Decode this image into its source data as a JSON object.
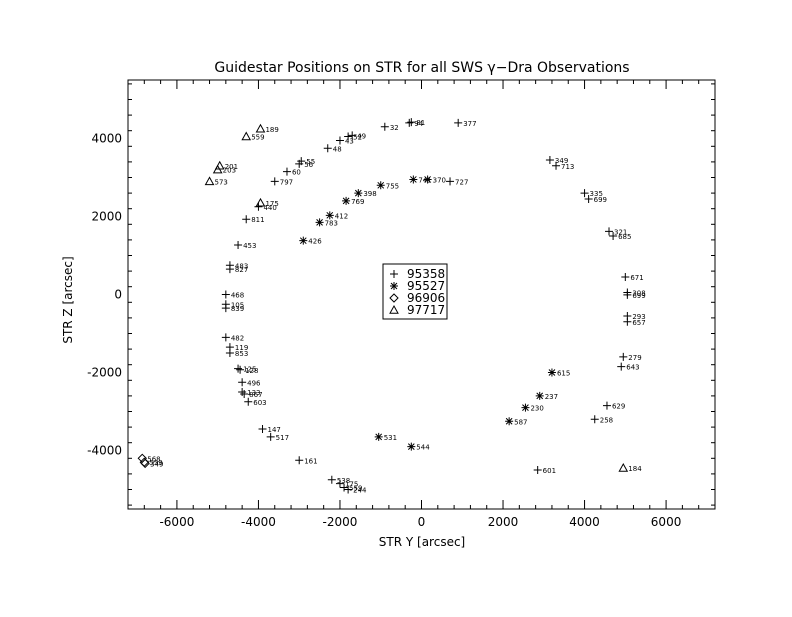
{
  "chart_data": {
    "type": "scatter",
    "title": "Guidestar Positions on STR for all SWS γ−Dra Observations",
    "xlabel": "STR Y [arcsec]",
    "ylabel": "STR Z [arcsec]",
    "xlim": [
      -7200,
      7200
    ],
    "ylim": [
      -5500,
      5500
    ],
    "xticks": [
      -6000,
      -4000,
      -2000,
      0,
      2000,
      4000,
      6000
    ],
    "yticks": [
      -4000,
      -2000,
      0,
      2000,
      4000
    ],
    "grid": false,
    "legend_position": "center",
    "colors": {
      "ink": "#000000",
      "background": "#ffffff"
    },
    "series": [
      {
        "name": "95358",
        "marker": "plus",
        "points": [
          {
            "x": -300,
            "y": 4400,
            "label": "94"
          },
          {
            "x": -250,
            "y": 4420,
            "label": "81"
          },
          {
            "x": 900,
            "y": 4400,
            "label": "377"
          },
          {
            "x": -900,
            "y": 4300,
            "label": "32"
          },
          {
            "x": -1700,
            "y": 4080,
            "label": "49"
          },
          {
            "x": -1800,
            "y": 4050,
            "label": "52"
          },
          {
            "x": -2000,
            "y": 3950,
            "label": "43"
          },
          {
            "x": -2300,
            "y": 3750,
            "label": "48"
          },
          {
            "x": -2950,
            "y": 3420,
            "label": "55"
          },
          {
            "x": -3000,
            "y": 3350,
            "label": "56"
          },
          {
            "x": -3300,
            "y": 3150,
            "label": "60"
          },
          {
            "x": -3600,
            "y": 2900,
            "label": "797"
          },
          {
            "x": -4000,
            "y": 2250,
            "label": "440"
          },
          {
            "x": -4300,
            "y": 1930,
            "label": "811"
          },
          {
            "x": -4500,
            "y": 1270,
            "label": "453"
          },
          {
            "x": -4700,
            "y": 750,
            "label": "483"
          },
          {
            "x": -4700,
            "y": 650,
            "label": "827"
          },
          {
            "x": -4800,
            "y": 0,
            "label": "468"
          },
          {
            "x": -4800,
            "y": -250,
            "label": "105"
          },
          {
            "x": -4800,
            "y": -350,
            "label": "839"
          },
          {
            "x": -4800,
            "y": -1100,
            "label": "482"
          },
          {
            "x": -4700,
            "y": -1350,
            "label": "119"
          },
          {
            "x": -4700,
            "y": -1500,
            "label": "853"
          },
          {
            "x": -4500,
            "y": -1900,
            "label": "125"
          },
          {
            "x": -4450,
            "y": -1930,
            "label": "128"
          },
          {
            "x": -4400,
            "y": -2250,
            "label": "496"
          },
          {
            "x": -4400,
            "y": -2500,
            "label": "133"
          },
          {
            "x": -4350,
            "y": -2550,
            "label": "867"
          },
          {
            "x": -4250,
            "y": -2750,
            "label": "603"
          },
          {
            "x": -3900,
            "y": -3450,
            "label": "147"
          },
          {
            "x": -3700,
            "y": -3650,
            "label": "517"
          },
          {
            "x": -3000,
            "y": -4250,
            "label": "161"
          },
          {
            "x": -2200,
            "y": -4750,
            "label": "538"
          },
          {
            "x": -2000,
            "y": -4850,
            "label": "175"
          },
          {
            "x": -1900,
            "y": -4950,
            "label": "559"
          },
          {
            "x": -1800,
            "y": -5000,
            "label": "244"
          },
          {
            "x": 2850,
            "y": -4500,
            "label": "601"
          },
          {
            "x": 4250,
            "y": -3200,
            "label": "258"
          },
          {
            "x": 4550,
            "y": -2850,
            "label": "629"
          },
          {
            "x": 4950,
            "y": -1600,
            "label": "279"
          },
          {
            "x": 4900,
            "y": -1850,
            "label": "643"
          },
          {
            "x": 5050,
            "y": -550,
            "label": "293"
          },
          {
            "x": 5050,
            "y": -700,
            "label": "657"
          },
          {
            "x": 5050,
            "y": 50,
            "label": "308"
          },
          {
            "x": 5050,
            "y": -10,
            "label": "699"
          },
          {
            "x": 5000,
            "y": 450,
            "label": "671"
          },
          {
            "x": 4600,
            "y": 1620,
            "label": "321"
          },
          {
            "x": 4700,
            "y": 1500,
            "label": "685"
          },
          {
            "x": 4000,
            "y": 2600,
            "label": "335"
          },
          {
            "x": 4100,
            "y": 2450,
            "label": "699"
          },
          {
            "x": 3150,
            "y": 3450,
            "label": "349"
          },
          {
            "x": 3300,
            "y": 3300,
            "label": "713"
          },
          {
            "x": 700,
            "y": 2900,
            "label": "727"
          }
        ]
      },
      {
        "name": "95527",
        "marker": "asterisk",
        "points": [
          {
            "x": -200,
            "y": 2950,
            "label": "741"
          },
          {
            "x": 150,
            "y": 2950,
            "label": "370"
          },
          {
            "x": -1000,
            "y": 2800,
            "label": "755"
          },
          {
            "x": -1550,
            "y": 2600,
            "label": "398"
          },
          {
            "x": -1850,
            "y": 2400,
            "label": "769"
          },
          {
            "x": -2250,
            "y": 2030,
            "label": "412"
          },
          {
            "x": -2500,
            "y": 1850,
            "label": "783"
          },
          {
            "x": -2900,
            "y": 1380,
            "label": "426"
          },
          {
            "x": 3200,
            "y": -2000,
            "label": "615"
          },
          {
            "x": 2900,
            "y": -2600,
            "label": "237"
          },
          {
            "x": 2550,
            "y": -2900,
            "label": "230"
          },
          {
            "x": 2150,
            "y": -3250,
            "label": "587"
          },
          {
            "x": -1050,
            "y": -3650,
            "label": "531"
          },
          {
            "x": -250,
            "y": -3900,
            "label": "544"
          }
        ]
      },
      {
        "name": "96906",
        "marker": "diamond",
        "points": [
          {
            "x": -6850,
            "y": -4200,
            "label": "568"
          },
          {
            "x": -6800,
            "y": -4300,
            "label": "559"
          },
          {
            "x": -6780,
            "y": -4330,
            "label": "349"
          }
        ]
      },
      {
        "name": "97717",
        "marker": "triangle",
        "points": [
          {
            "x": -3950,
            "y": 4250,
            "label": "189"
          },
          {
            "x": -4300,
            "y": 4050,
            "label": "559"
          },
          {
            "x": -4950,
            "y": 3300,
            "label": "201"
          },
          {
            "x": -5000,
            "y": 3200,
            "label": "203"
          },
          {
            "x": -5200,
            "y": 2900,
            "label": "573"
          },
          {
            "x": -3950,
            "y": 2350,
            "label": "175"
          },
          {
            "x": 4950,
            "y": -4450,
            "label": "184"
          }
        ]
      }
    ]
  }
}
